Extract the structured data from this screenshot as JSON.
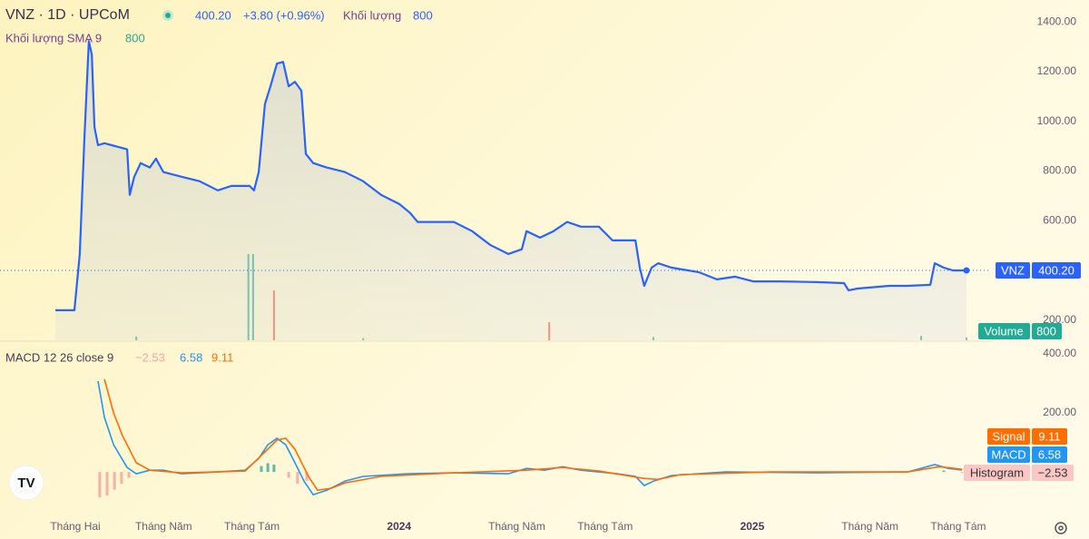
{
  "header": {
    "symbol": "VNZ · 1D · UPCoM",
    "price": "400.20",
    "change": "+3.80 (+0.96%)",
    "volume_label": "Khối lượng",
    "volume": "800",
    "sma_label": "Khối lượng SMA 9",
    "sma": "800"
  },
  "chart_data": [
    {
      "type": "area",
      "xlim": [
        -1.56,
        32.05
      ],
      "ylim": [
        119,
        1488
      ],
      "xticks": [
        {
          "value": 1,
          "label": "Tháng Hai"
        },
        {
          "value": 4,
          "label": "Tháng Năm"
        },
        {
          "value": 7,
          "label": "Tháng Tám"
        },
        {
          "value": 12,
          "label": "2024"
        },
        {
          "value": 16,
          "label": "Tháng Năm"
        },
        {
          "value": 19,
          "label": "Tháng Tám"
        },
        {
          "value": 24,
          "label": "2025"
        },
        {
          "value": 28,
          "label": "Tháng Năm"
        },
        {
          "value": 31,
          "label": "Tháng Tám"
        }
      ],
      "yticks": [
        {
          "value": 200,
          "label": "200.00"
        },
        {
          "value": 600,
          "label": "600.00"
        },
        {
          "value": 800,
          "label": "800.00"
        },
        {
          "value": 1000,
          "label": "1000.00"
        },
        {
          "value": 1200,
          "label": "1200.00"
        },
        {
          "value": 1400,
          "label": "1400.00"
        }
      ],
      "grid": false,
      "series": [
        {
          "name": "VNZ",
          "color": "#2962ff",
          "x": [
            0.32,
            0.97,
            1.15,
            1.31,
            1.46,
            1.56,
            1.65,
            1.77,
            1.99,
            2.76,
            2.85,
            3.0,
            3.22,
            3.53,
            3.74,
            3.99,
            4.61,
            5.22,
            5.84,
            6.3,
            6.92,
            7.07,
            7.23,
            7.44,
            7.63,
            7.85,
            8.06,
            8.25,
            8.46,
            8.68,
            8.83,
            9.08,
            9.54,
            10.16,
            10.78,
            11.39,
            12.01,
            12.38,
            12.63,
            13.24,
            13.86,
            14.48,
            15.09,
            15.71,
            16.17,
            16.33,
            16.79,
            17.25,
            17.71,
            18.18,
            18.79,
            19.25,
            20.03,
            20.18,
            20.33,
            20.58,
            20.8,
            21.26,
            22.18,
            22.8,
            23.42,
            24.03,
            24.96,
            26.19,
            27.12,
            27.27,
            27.58,
            28.66,
            29.28,
            30.05,
            30.2,
            30.51,
            30.82,
            31.28
          ],
          "values": [
            240,
            240,
            466,
            940,
            1323,
            1268,
            977,
            904,
            912,
            887,
            704,
            777,
            832,
            814,
            850,
            796,
            777,
            759,
            722,
            740,
            740,
            722,
            796,
            1069,
            1141,
            1232,
            1239,
            1141,
            1159,
            1123,
            869,
            832,
            814,
            796,
            759,
            704,
            667,
            631,
            595,
            595,
            595,
            558,
            503,
            466,
            485,
            558,
            532,
            558,
            595,
            576,
            576,
            521,
            521,
            411,
            338,
            411,
            429,
            411,
            393,
            364,
            375,
            356,
            356,
            353,
            349,
            320,
            327,
            338,
            338,
            342,
            429,
            411,
            400,
            400.2
          ],
          "last_label": "400.20"
        }
      ]
    },
    {
      "type": "bar",
      "name": "Volume",
      "xlim": [
        -1.56,
        32.05
      ],
      "ylim": [
        0,
        50000
      ],
      "x": [
        3.07,
        6.88,
        7.04,
        7.75,
        10.78,
        17.1,
        20.64,
        29.74,
        31.28
      ],
      "values": [
        1000,
        23750,
        23750,
        13750,
        600,
        5000,
        900,
        1200,
        800
      ],
      "colors": [
        "#26a69a",
        "#26a69a",
        "#26a69a",
        "#ef5350",
        "#26a69a",
        "#ef5350",
        "#26a69a",
        "#26a69a",
        "#26a69a"
      ],
      "last_label": "800"
    },
    {
      "type": "line",
      "title": "MACD 12 26 close 9",
      "xlim": [
        -1.56,
        32.05
      ],
      "ylim": [
        -138,
        437
      ],
      "yticks": [
        {
          "value": 200,
          "label": "200.00"
        },
        {
          "value": 400,
          "label": "400.00"
        }
      ],
      "histogram": {
        "name": "Histogram",
        "up_color": "#26a69a",
        "down_color": "#ef9a9a",
        "x": [
          1.83,
          2.08,
          2.33,
          2.57,
          2.82,
          7.32,
          7.54,
          7.75,
          8.25,
          8.55,
          8.86,
          30.51,
          31.13
        ],
        "values": [
          -86,
          -80,
          -60,
          -40,
          -20,
          20,
          30,
          25,
          -20,
          -40,
          -30,
          5,
          -2.53
        ],
        "last_label": "−2.53"
      },
      "series": [
        {
          "name": "MACD",
          "color": "#2196f3",
          "x": [
            1.77,
            1.99,
            2.3,
            2.76,
            3.07,
            3.53,
            3.99,
            4.61,
            5.84,
            6.77,
            7.23,
            7.54,
            7.85,
            8.15,
            8.46,
            8.77,
            9.08,
            9.54,
            10.16,
            10.78,
            12.32,
            13.86,
            15.71,
            16.33,
            16.94,
            17.56,
            18.18,
            19.41,
            20.03,
            20.33,
            20.64,
            21.26,
            23.11,
            26.19,
            29.28,
            30.2,
            30.66,
            31.13
          ],
          "values": [
            308,
            185,
            92,
            15,
            -6,
            6,
            6,
            -6,
            0,
            6,
            46,
            92,
            114,
            92,
            31,
            -31,
            -77,
            -62,
            -31,
            -15,
            -6,
            -3,
            -6,
            12,
            6,
            18,
            6,
            -6,
            -15,
            -46,
            -31,
            -12,
            0,
            -3,
            0,
            25,
            12,
            6.58
          ],
          "last_label": "6.58"
        },
        {
          "name": "Signal",
          "color": "#ff6d00",
          "x": [
            1.99,
            2.3,
            2.6,
            3.07,
            3.53,
            4.61,
            6.77,
            7.38,
            7.85,
            8.15,
            8.46,
            8.92,
            9.23,
            9.7,
            10.16,
            11.39,
            13.86,
            16.33,
            17.56,
            18.79,
            20.33,
            20.8,
            21.57,
            24.65,
            29.28,
            30.36,
            31.13
          ],
          "values": [
            314,
            200,
            123,
            31,
            6,
            -3,
            3,
            62,
            108,
            114,
            77,
            -15,
            -62,
            -55,
            -37,
            -15,
            -3,
            6,
            15,
            3,
            -22,
            -25,
            -9,
            0,
            0,
            18,
            9.11
          ],
          "last_label": "9.11"
        }
      ]
    }
  ]
}
